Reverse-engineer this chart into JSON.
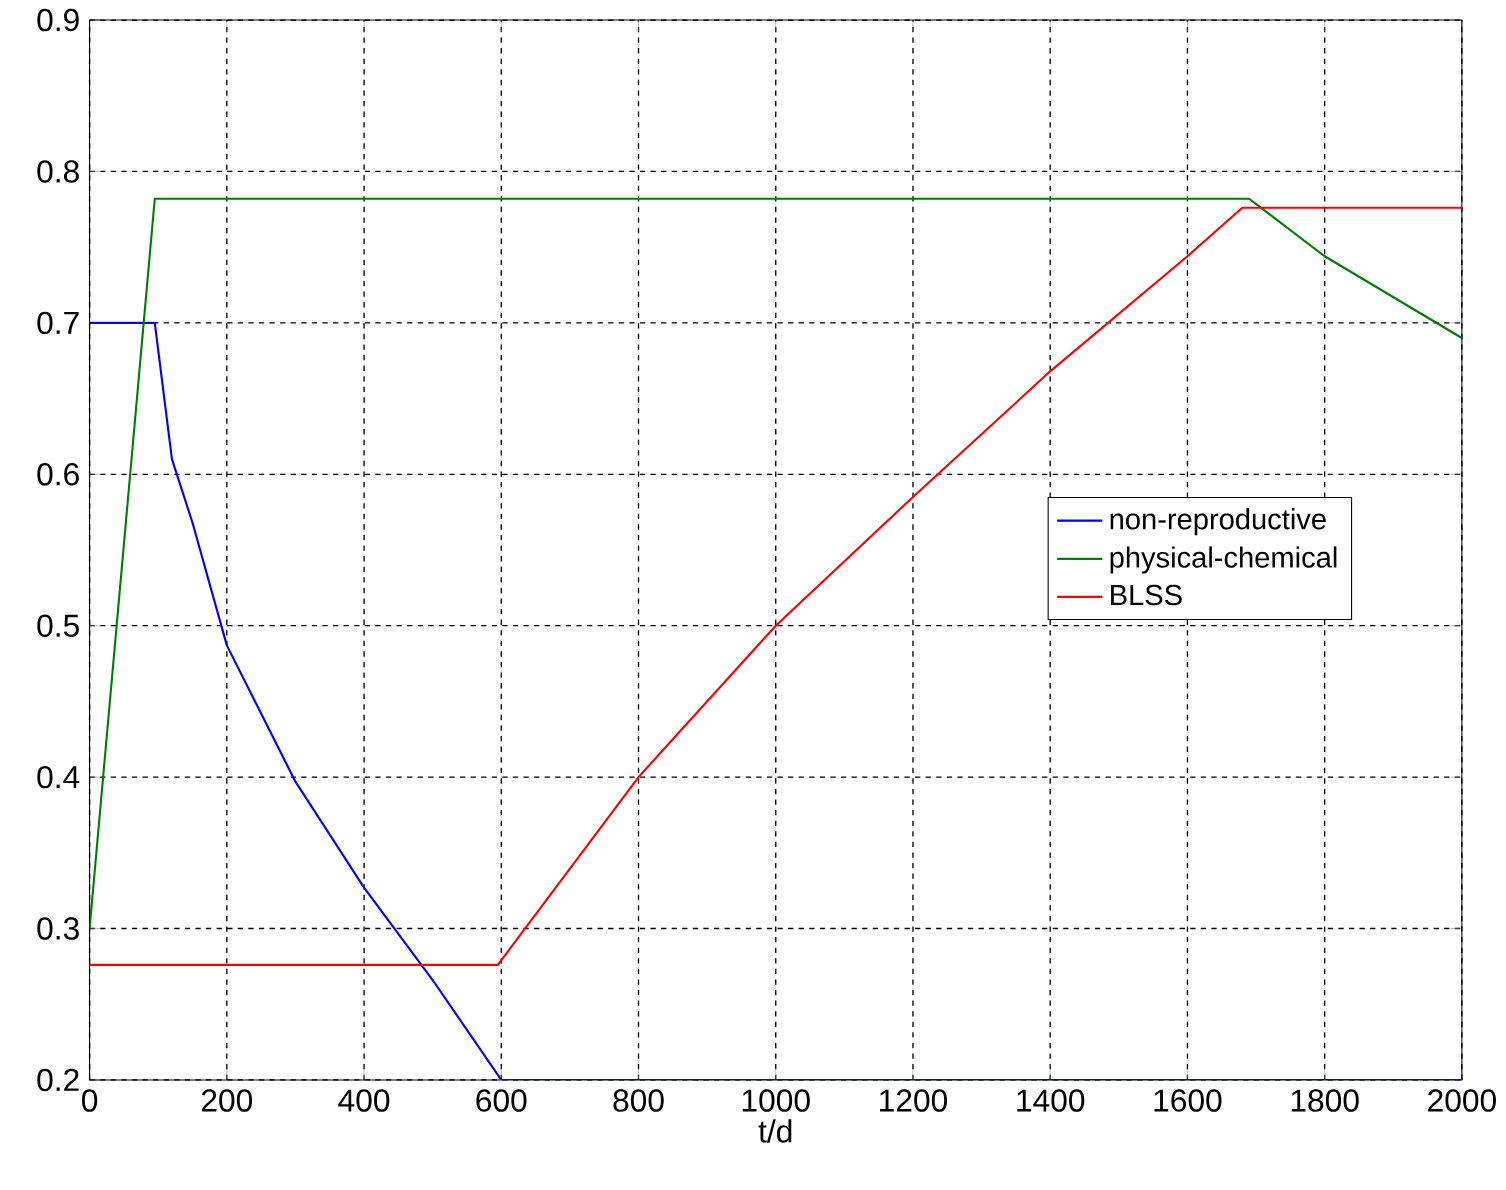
{
  "chart_data": {
    "type": "line",
    "xlabel": "t/d",
    "xlim": [
      0,
      2000
    ],
    "xticks": [
      0,
      200,
      400,
      600,
      800,
      1000,
      1200,
      1400,
      1600,
      1800,
      2000
    ],
    "ylim": [
      0.2,
      0.9
    ],
    "yticks": [
      0.2,
      0.3,
      0.4,
      0.5,
      0.6,
      0.7,
      0.8,
      0.9
    ],
    "grid": true,
    "legend": "right",
    "marker": "none",
    "line_style": "solid",
    "series": [
      {
        "name": "non-reproductive",
        "color": "#0000ff",
        "x": [
          0,
          95,
          120,
          150,
          200,
          300,
          400,
          500,
          600,
          2000
        ],
        "values": [
          0.7,
          0.7,
          0.61,
          0.568,
          0.487,
          0.397,
          0.327,
          0.266,
          0.2,
          0.2
        ]
      },
      {
        "name": "physical-chemical",
        "color": "#008000",
        "x": [
          0,
          95,
          1690,
          1800,
          2000
        ],
        "values": [
          0.3,
          0.782,
          0.782,
          0.744,
          0.69
        ]
      },
      {
        "name": "BLSS",
        "color": "#ff0000",
        "x": [
          0,
          595,
          800,
          1000,
          1200,
          1400,
          1600,
          1680,
          2000
        ],
        "values": [
          0.276,
          0.276,
          0.4,
          0.5,
          0.585,
          0.668,
          0.744,
          0.776,
          0.776
        ]
      }
    ]
  }
}
